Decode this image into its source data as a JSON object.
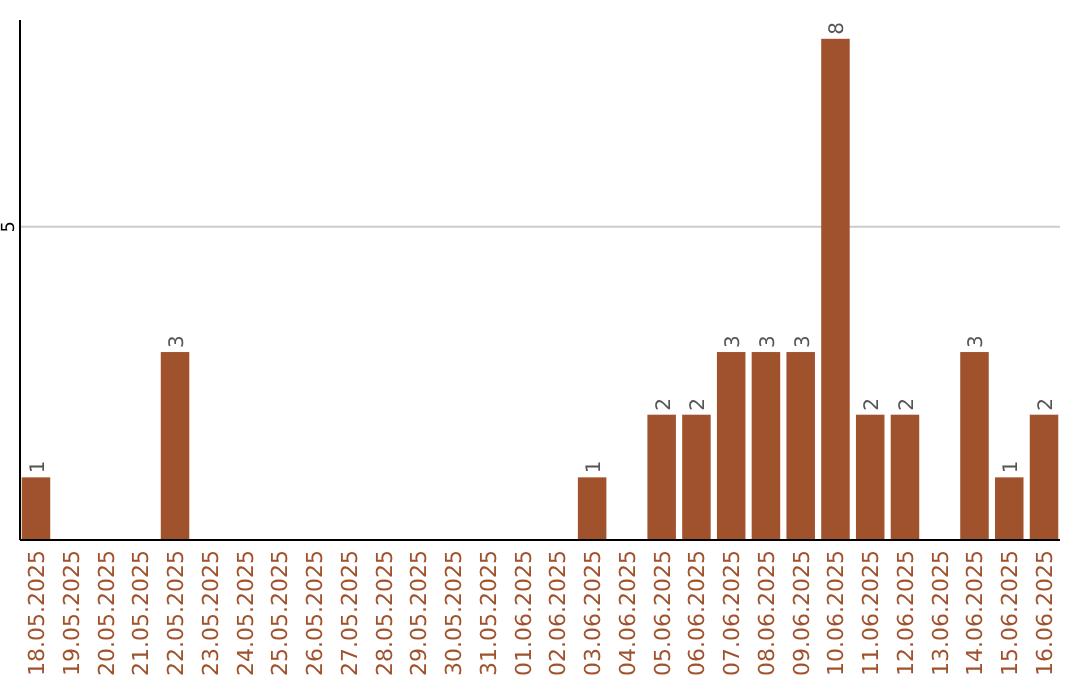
{
  "chart_data": {
    "type": "bar",
    "categories": [
      "18.05.2025",
      "19.05.2025",
      "20.05.2025",
      "21.05.2025",
      "22.05.2025",
      "23.05.2025",
      "24.05.2025",
      "25.05.2025",
      "26.05.2025",
      "27.05.2025",
      "28.05.2025",
      "29.05.2025",
      "30.05.2025",
      "31.05.2025",
      "01.06.2025",
      "02.06.2025",
      "03.06.2025",
      "04.06.2025",
      "05.06.2025",
      "06.06.2025",
      "07.06.2025",
      "08.06.2025",
      "09.06.2025",
      "10.06.2025",
      "11.06.2025",
      "12.06.2025",
      "13.06.2025",
      "14.06.2025",
      "15.06.2025",
      "16.06.2025"
    ],
    "values": [
      1,
      0,
      0,
      0,
      3,
      0,
      0,
      0,
      0,
      0,
      0,
      0,
      0,
      0,
      0,
      0,
      1,
      0,
      2,
      2,
      3,
      3,
      3,
      8,
      2,
      2,
      0,
      3,
      1,
      2
    ],
    "value_labels": [
      "1",
      null,
      null,
      null,
      "3",
      null,
      null,
      null,
      null,
      null,
      null,
      null,
      null,
      null,
      null,
      null,
      "1",
      null,
      "2",
      "2",
      "3",
      "3",
      "3",
      "8",
      "2",
      "2",
      null,
      "3",
      "1",
      "2"
    ],
    "color": "#a0522d",
    "ylim": [
      0,
      8.3
    ],
    "yticks": [
      5
    ],
    "grid": "y"
  }
}
